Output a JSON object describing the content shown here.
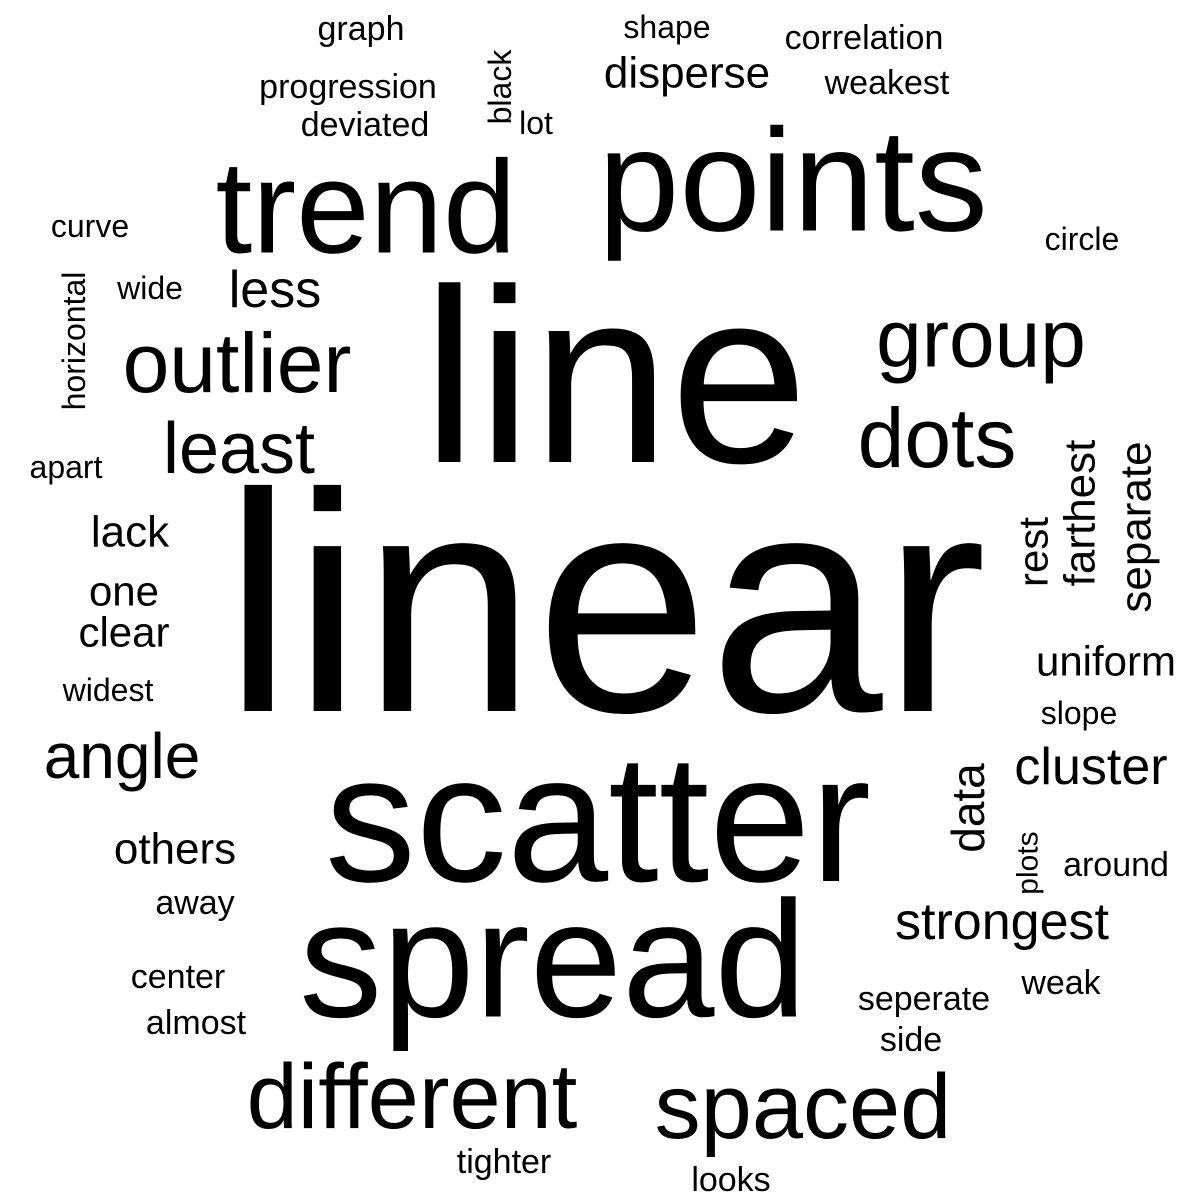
{
  "words": [
    {
      "text": "linear",
      "vertical": false
    },
    {
      "text": "line",
      "vertical": false
    },
    {
      "text": "scatter",
      "vertical": false
    },
    {
      "text": "spread",
      "vertical": false
    },
    {
      "text": "points",
      "vertical": false
    },
    {
      "text": "trend",
      "vertical": false
    },
    {
      "text": "different",
      "vertical": false
    },
    {
      "text": "spaced",
      "vertical": false
    },
    {
      "text": "outlier",
      "vertical": false
    },
    {
      "text": "group",
      "vertical": false
    },
    {
      "text": "dots",
      "vertical": false
    },
    {
      "text": "least",
      "vertical": false
    },
    {
      "text": "angle",
      "vertical": false
    },
    {
      "text": "less",
      "vertical": false
    },
    {
      "text": "strongest",
      "vertical": false
    },
    {
      "text": "cluster",
      "vertical": false
    },
    {
      "text": "disperse",
      "vertical": false
    },
    {
      "text": "data",
      "vertical": true
    },
    {
      "text": "uniform",
      "vertical": false
    },
    {
      "text": "others",
      "vertical": false
    },
    {
      "text": "lack",
      "vertical": false
    },
    {
      "text": "one",
      "vertical": false
    },
    {
      "text": "clear",
      "vertical": false
    },
    {
      "text": "farthest",
      "vertical": true
    },
    {
      "text": "separate",
      "vertical": true
    },
    {
      "text": "rest",
      "vertical": true
    },
    {
      "text": "graph",
      "vertical": false
    },
    {
      "text": "progression",
      "vertical": false
    },
    {
      "text": "deviated",
      "vertical": false
    },
    {
      "text": "correlation",
      "vertical": false
    },
    {
      "text": "weakest",
      "vertical": false
    },
    {
      "text": "shape",
      "vertical": false
    },
    {
      "text": "black",
      "vertical": true
    },
    {
      "text": "lot",
      "vertical": false
    },
    {
      "text": "curve",
      "vertical": false
    },
    {
      "text": "circle",
      "vertical": false
    },
    {
      "text": "wide",
      "vertical": false
    },
    {
      "text": "horizontal",
      "vertical": true
    },
    {
      "text": "apart",
      "vertical": false
    },
    {
      "text": "widest",
      "vertical": false
    },
    {
      "text": "slope",
      "vertical": false
    },
    {
      "text": "plots",
      "vertical": true
    },
    {
      "text": "around",
      "vertical": false
    },
    {
      "text": "away",
      "vertical": false
    },
    {
      "text": "center",
      "vertical": false
    },
    {
      "text": "almost",
      "vertical": false
    },
    {
      "text": "seperate",
      "vertical": false
    },
    {
      "text": "side",
      "vertical": false
    },
    {
      "text": "weak",
      "vertical": false
    },
    {
      "text": "tighter",
      "vertical": false
    },
    {
      "text": "looks",
      "vertical": false
    }
  ],
  "colors": {
    "background": "#ffffff",
    "text": "#000000"
  }
}
